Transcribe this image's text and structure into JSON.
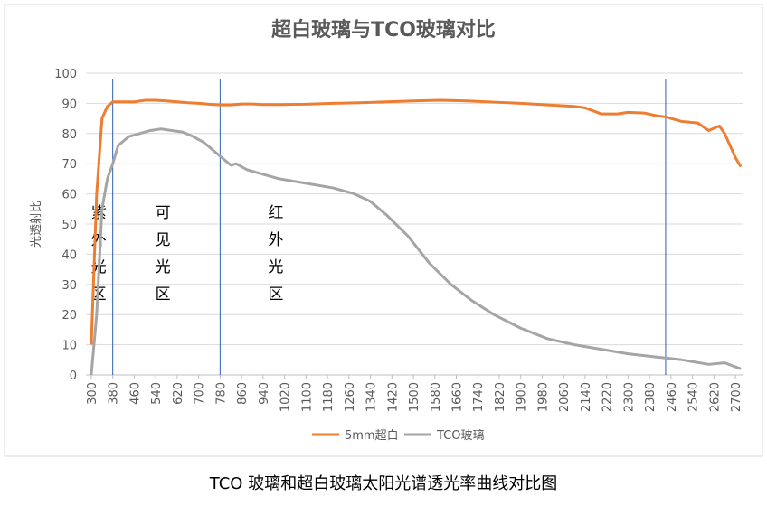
{
  "chart_data": {
    "type": "line",
    "title": "超白玻璃与TCO玻璃对比",
    "y_label": "光透射比",
    "caption": "TCO 玻璃和超白玻璃太阳光谱透光率曲线对比图",
    "xlim": [
      280,
      2730
    ],
    "xticks": [
      300,
      380,
      460,
      540,
      620,
      700,
      780,
      860,
      940,
      1020,
      1100,
      1180,
      1260,
      1340,
      1420,
      1500,
      1580,
      1660,
      1740,
      1820,
      1900,
      1980,
      2060,
      2140,
      2220,
      2300,
      2380,
      2460,
      2540,
      2620,
      2700
    ],
    "ylim": [
      0,
      100
    ],
    "yticks": [
      0,
      10,
      20,
      30,
      40,
      50,
      60,
      70,
      80,
      90,
      100
    ],
    "grid": true,
    "vlines": [
      380,
      780,
      2440
    ],
    "vline_color": "#2e5fb4",
    "region_labels": [
      "紫外光区",
      "可见光区",
      "红外光区"
    ],
    "legend": "bottom",
    "series": [
      {
        "name": "5mm超白",
        "color": "#ed7d31",
        "x": [
          300,
          320,
          340,
          360,
          380,
          420,
          460,
          500,
          540,
          580,
          620,
          660,
          700,
          740,
          780,
          820,
          860,
          900,
          940,
          1000,
          1100,
          1200,
          1300,
          1400,
          1500,
          1600,
          1700,
          1800,
          1900,
          2000,
          2100,
          2140,
          2200,
          2260,
          2300,
          2360,
          2400,
          2440,
          2500,
          2560,
          2600,
          2640,
          2660,
          2700,
          2720
        ],
        "values": [
          10,
          60,
          85,
          89,
          90.5,
          90.5,
          90.5,
          91,
          91,
          90.8,
          90.5,
          90.2,
          90,
          89.7,
          89.5,
          89.5,
          89.8,
          89.8,
          89.6,
          89.6,
          89.7,
          90,
          90.2,
          90.5,
          90.8,
          91,
          90.8,
          90.4,
          90,
          89.5,
          89,
          88.5,
          86.5,
          86.5,
          87,
          86.8,
          86,
          85.5,
          84,
          83.5,
          81,
          82.5,
          80,
          72,
          69
        ]
      },
      {
        "name": "TCO玻璃",
        "color": "#a5a5a5",
        "x": [
          300,
          320,
          340,
          360,
          380,
          400,
          440,
          480,
          520,
          560,
          600,
          640,
          680,
          720,
          760,
          800,
          820,
          840,
          880,
          940,
          1000,
          1100,
          1200,
          1280,
          1340,
          1400,
          1480,
          1560,
          1640,
          1720,
          1800,
          1900,
          2000,
          2100,
          2200,
          2300,
          2400,
          2500,
          2600,
          2660,
          2720
        ],
        "values": [
          0,
          20,
          55,
          65,
          70,
          76,
          79,
          80,
          81,
          81.5,
          81,
          80.5,
          79,
          77,
          74,
          71,
          69.5,
          70,
          68,
          66.5,
          65,
          63.5,
          62,
          60,
          57.5,
          53,
          46,
          37,
          30,
          24.5,
          20,
          15.5,
          12,
          10,
          8.5,
          7,
          6,
          5,
          3.5,
          4,
          2
        ]
      }
    ]
  }
}
